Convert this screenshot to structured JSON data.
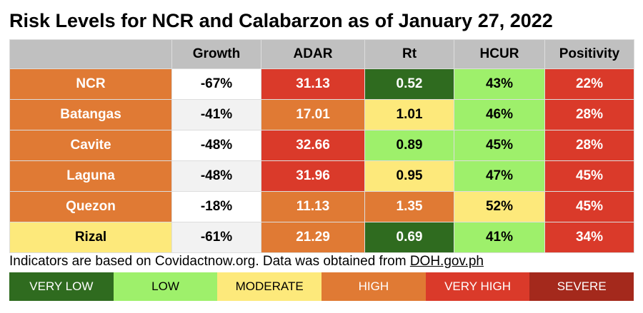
{
  "title": "Risk Levels for NCR and Calabarzon as of January 27, 2022",
  "colors": {
    "very_low": "#2f6b1f",
    "low": "#9ef06b",
    "moderate": "#fde97b",
    "high": "#e07a34",
    "very_high": "#da3a2a",
    "severe": "#a4291c",
    "header": "#c0c0c0",
    "white": "#ffffff",
    "light_gray": "#f2f2f2"
  },
  "columns": [
    "",
    "Growth",
    "ADAR",
    "Rt",
    "HCUR",
    "Positivity"
  ],
  "rows": [
    {
      "name": "NCR",
      "values": [
        "-67%",
        "31.13",
        "0.52",
        "43%",
        "22%"
      ],
      "levels": [
        "high",
        "white",
        "very_high",
        "very_low",
        "low",
        "very_high"
      ]
    },
    {
      "name": "Batangas",
      "values": [
        "-41%",
        "17.01",
        "1.01",
        "46%",
        "28%"
      ],
      "levels": [
        "high",
        "light_gray",
        "high",
        "moderate",
        "low",
        "very_high"
      ]
    },
    {
      "name": "Cavite",
      "values": [
        "-48%",
        "32.66",
        "0.89",
        "45%",
        "28%"
      ],
      "levels": [
        "high",
        "white",
        "very_high",
        "low",
        "low",
        "very_high"
      ]
    },
    {
      "name": "Laguna",
      "values": [
        "-48%",
        "31.96",
        "0.95",
        "47%",
        "45%"
      ],
      "levels": [
        "high",
        "light_gray",
        "very_high",
        "moderate",
        "low",
        "very_high"
      ]
    },
    {
      "name": "Quezon",
      "values": [
        "-18%",
        "11.13",
        "1.35",
        "52%",
        "45%"
      ],
      "levels": [
        "high",
        "white",
        "high",
        "high",
        "moderate",
        "very_high"
      ]
    },
    {
      "name": "Rizal",
      "values": [
        "-61%",
        "21.29",
        "0.69",
        "41%",
        "34%"
      ],
      "levels": [
        "moderate",
        "light_gray",
        "high",
        "very_low",
        "low",
        "very_high"
      ]
    }
  ],
  "footnote": {
    "text": "Indicators are based on Covidactnow.org. Data was obtained from ",
    "link": "DOH.gov.ph"
  },
  "legend": [
    {
      "label": "VERY LOW",
      "level": "very_low"
    },
    {
      "label": "LOW",
      "level": "low"
    },
    {
      "label": "MODERATE",
      "level": "moderate"
    },
    {
      "label": "HIGH",
      "level": "high"
    },
    {
      "label": "VERY HIGH",
      "level": "very_high"
    },
    {
      "label": "SEVERE",
      "level": "severe"
    }
  ]
}
